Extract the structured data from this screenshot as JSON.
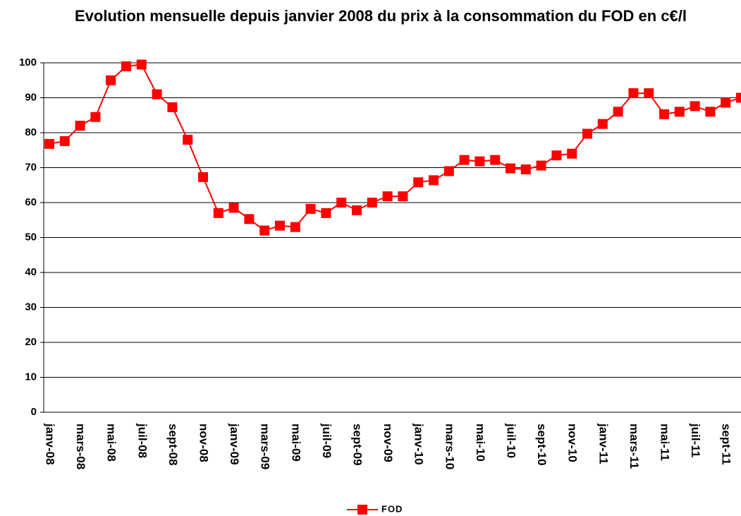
{
  "chart_data": {
    "type": "line",
    "title": "Evolution mensuelle depuis janvier 2008 du prix à la consommation du FOD en c€/l",
    "categories": [
      "janv-08",
      null,
      "mars-08",
      null,
      "mai-08",
      null,
      "juil-08",
      null,
      "sept-08",
      null,
      "nov-08",
      null,
      "janv-09",
      null,
      "mars-09",
      null,
      "mai-09",
      null,
      "juil-09",
      null,
      "sept-09",
      null,
      "nov-09",
      null,
      "janv-10",
      null,
      "mars-10",
      null,
      "mai-10",
      null,
      "juil-10",
      null,
      "sept-10",
      null,
      "nov-10",
      null,
      "janv-11",
      null,
      "mars-11",
      null,
      "mai-11",
      null,
      "juil-11",
      null,
      "sept-11",
      null
    ],
    "series": [
      {
        "name": "FOD",
        "color": "#ff0000",
        "values": [
          76.8,
          77.6,
          82,
          84.5,
          95,
          99,
          99.5,
          91,
          87.3,
          78,
          67.3,
          57,
          58.5,
          55.3,
          52,
          53.4,
          53,
          58.2,
          57,
          60,
          57.8,
          60,
          61.8,
          61.8,
          65.8,
          66.4,
          69,
          72.2,
          71.8,
          72.2,
          69.8,
          69.5,
          70.6,
          73.5,
          74,
          79.7,
          82.5,
          86,
          91.3,
          91.3,
          85.3,
          86,
          87.6,
          86,
          88.6,
          90
        ]
      }
    ],
    "ylim": [
      0,
      100
    ],
    "yticks": [
      0,
      10,
      20,
      30,
      40,
      50,
      60,
      70,
      80,
      90,
      100
    ],
    "grid": true,
    "legend": "bottom"
  }
}
